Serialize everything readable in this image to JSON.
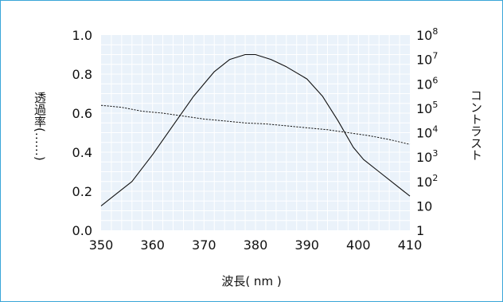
{
  "chart_data": {
    "type": "line",
    "xlabel": "波長( nm )",
    "ylabel_left": "透過率(……)",
    "ylabel_right": "コントラスト",
    "xlim": [
      350,
      410
    ],
    "ylim_left": [
      0.0,
      1.0
    ],
    "ylim_right_log10": [
      0,
      8
    ],
    "x_ticks": [
      "350",
      "360",
      "370",
      "380",
      "390",
      "400",
      "410"
    ],
    "y_left_ticks": [
      "0.0",
      "0.2",
      "0.4",
      "0.6",
      "0.8",
      "1.0"
    ],
    "y_right_ticks": [
      {
        "base": "1",
        "exp": ""
      },
      {
        "base": "10",
        "exp": ""
      },
      {
        "base": "10",
        "exp": "2"
      },
      {
        "base": "10",
        "exp": "3"
      },
      {
        "base": "10",
        "exp": "4"
      },
      {
        "base": "10",
        "exp": "5"
      },
      {
        "base": "10",
        "exp": "6"
      },
      {
        "base": "10",
        "exp": "7"
      },
      {
        "base": "10",
        "exp": "8"
      }
    ],
    "grid": true,
    "series": [
      {
        "axis": "right",
        "style": "solid",
        "x": [
          350,
          353,
          356,
          360,
          364,
          368,
          372,
          375,
          378,
          380,
          383,
          386,
          390,
          393,
          396,
          399,
          401,
          404,
          407,
          410
        ],
        "log10_y": [
          1.0,
          1.5,
          2.0,
          3.1,
          4.3,
          5.5,
          6.5,
          7.0,
          7.2,
          7.2,
          7.0,
          6.7,
          6.2,
          5.5,
          4.5,
          3.4,
          2.9,
          2.4,
          1.9,
          1.4
        ]
      },
      {
        "axis": "left",
        "style": "dotted",
        "x": [
          350,
          354,
          358,
          362,
          366,
          370,
          374,
          378,
          382,
          386,
          390,
          394,
          398,
          402,
          406,
          410
        ],
        "y": [
          0.64,
          0.63,
          0.61,
          0.6,
          0.585,
          0.57,
          0.56,
          0.55,
          0.545,
          0.535,
          0.525,
          0.515,
          0.5,
          0.485,
          0.465,
          0.44
        ]
      }
    ]
  },
  "colors": {
    "plot_bg": "#eaf2fa",
    "grid": "#ffffff",
    "line": "#111111",
    "frame": "#3aa6d8"
  }
}
